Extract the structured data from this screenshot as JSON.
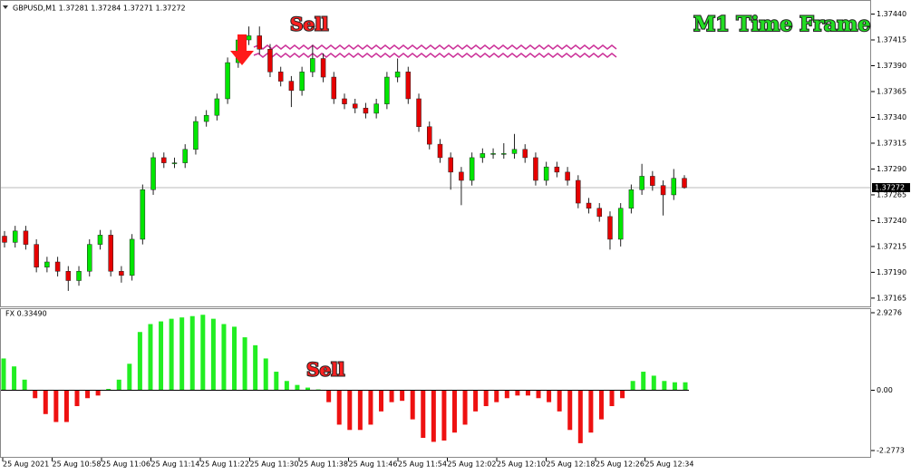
{
  "header": "GBPUSD,M1  1.37281 1.37284 1.37271 1.37272",
  "chart_data": [
    {
      "type": "candlestick",
      "annotations": [
        "Sell",
        "M1 Time Frame"
      ],
      "current_price": 1.37272,
      "up_color": "#00e600",
      "down_color": "#e60000",
      "ylim": [
        1.37157,
        1.37451
      ],
      "yticks": [
        {
          "value": 1.3744,
          "label": "1.37440"
        },
        {
          "value": 1.37415,
          "label": "1.37415"
        },
        {
          "value": 1.3739,
          "label": "1.37390"
        },
        {
          "value": 1.37365,
          "label": "1.37365"
        },
        {
          "value": 1.3734,
          "label": "1.37340"
        },
        {
          "value": 1.37315,
          "label": "1.37315"
        },
        {
          "value": 1.3729,
          "label": "1.37290"
        },
        {
          "value": 1.37265,
          "label": "1.37265"
        },
        {
          "value": 1.3724,
          "label": "1.37240"
        },
        {
          "value": 1.37215,
          "label": "1.37215"
        },
        {
          "value": 1.3719,
          "label": "1.37190"
        },
        {
          "value": 1.37165,
          "label": "1.37165"
        }
      ],
      "open": [
        1.37225,
        1.37219,
        1.3723,
        1.37217,
        1.37195,
        1.372,
        1.37191,
        1.37182,
        1.37191,
        1.37217,
        1.37226,
        1.37191,
        1.37187,
        1.37222,
        1.3727,
        1.37301,
        1.37296,
        1.37296,
        1.37309,
        1.37336,
        1.37342,
        1.37358,
        1.37393,
        1.37415,
        1.37419,
        1.37406,
        1.37384,
        1.37375,
        1.37366,
        1.37384,
        1.37397,
        1.37379,
        1.37358,
        1.37353,
        1.37349,
        1.37344,
        1.37353,
        1.37379,
        1.37384,
        1.37358,
        1.37331,
        1.37314,
        1.37301,
        1.37287,
        1.37279,
        1.37301,
        1.37305,
        1.37305,
        1.37305,
        1.37309,
        1.37301,
        1.37279,
        1.37292,
        1.37287,
        1.37279,
        1.37257,
        1.37252,
        1.37244,
        1.37222,
        1.37252,
        1.3727,
        1.37283,
        1.37274,
        1.37265,
        1.37281
      ],
      "high": [
        1.3723,
        1.37235,
        1.37235,
        1.37222,
        1.37205,
        1.37205,
        1.37196,
        1.37196,
        1.37222,
        1.37231,
        1.37231,
        1.37196,
        1.37227,
        1.37275,
        1.37306,
        1.37306,
        1.37301,
        1.37314,
        1.37341,
        1.37347,
        1.37363,
        1.37398,
        1.3742,
        1.37428,
        1.37428,
        1.37411,
        1.37389,
        1.3738,
        1.37389,
        1.3741,
        1.37402,
        1.37384,
        1.37363,
        1.37358,
        1.37354,
        1.37358,
        1.37384,
        1.37397,
        1.37389,
        1.37363,
        1.37336,
        1.37319,
        1.37306,
        1.37292,
        1.37306,
        1.3731,
        1.3731,
        1.37315,
        1.37324,
        1.37314,
        1.37306,
        1.37297,
        1.37297,
        1.37292,
        1.37284,
        1.37262,
        1.37257,
        1.37249,
        1.37257,
        1.37275,
        1.37295,
        1.37288,
        1.37279,
        1.3729,
        1.37284
      ],
      "low": [
        1.37214,
        1.37214,
        1.37212,
        1.3719,
        1.3719,
        1.37186,
        1.37172,
        1.37177,
        1.37186,
        1.37212,
        1.37186,
        1.3718,
        1.37182,
        1.37217,
        1.37265,
        1.37291,
        1.37291,
        1.37291,
        1.37304,
        1.37331,
        1.37337,
        1.37353,
        1.37388,
        1.3741,
        1.37401,
        1.37379,
        1.3737,
        1.3735,
        1.37361,
        1.37379,
        1.37374,
        1.37353,
        1.37348,
        1.37344,
        1.37339,
        1.37339,
        1.37348,
        1.37374,
        1.37353,
        1.37326,
        1.37309,
        1.37296,
        1.3727,
        1.37255,
        1.37274,
        1.37296,
        1.373,
        1.373,
        1.373,
        1.37296,
        1.37274,
        1.37274,
        1.37282,
        1.37274,
        1.37252,
        1.37247,
        1.37239,
        1.37212,
        1.37215,
        1.37247,
        1.37265,
        1.37269,
        1.37245,
        1.3726,
        1.37271
      ],
      "close": [
        1.37219,
        1.3723,
        1.37217,
        1.37195,
        1.372,
        1.37191,
        1.37182,
        1.37191,
        1.37217,
        1.37226,
        1.37191,
        1.37187,
        1.37222,
        1.3727,
        1.37301,
        1.37296,
        1.37296,
        1.37309,
        1.37336,
        1.37342,
        1.37358,
        1.37393,
        1.37415,
        1.37419,
        1.37406,
        1.37384,
        1.37375,
        1.37366,
        1.37384,
        1.37397,
        1.37379,
        1.37358,
        1.37353,
        1.37349,
        1.37344,
        1.37353,
        1.37379,
        1.37384,
        1.37358,
        1.37331,
        1.37314,
        1.37301,
        1.37287,
        1.37279,
        1.37301,
        1.37305,
        1.37305,
        1.37305,
        1.37309,
        1.37301,
        1.37279,
        1.37292,
        1.37287,
        1.37279,
        1.37257,
        1.37252,
        1.37244,
        1.37222,
        1.37252,
        1.3727,
        1.37283,
        1.37274,
        1.37265,
        1.37281,
        1.37272
      ]
    },
    {
      "type": "histogram_oscillator",
      "title": "FX 0.33490",
      "annotations": [
        "Sell"
      ],
      "positive_color": "#22ee22",
      "negative_color": "#ee1111",
      "ylim": [
        -2.2773,
        2.9276
      ],
      "yticks": [
        2.9276,
        {
          "value": 0,
          "label": "0.00"
        },
        -2.2773
      ],
      "values": [
        1.2,
        0.9,
        0.4,
        -0.3,
        -0.9,
        -1.2,
        -1.2,
        -0.6,
        -0.3,
        -0.2,
        0.05,
        0.4,
        1.0,
        2.2,
        2.5,
        2.6,
        2.7,
        2.75,
        2.8,
        2.85,
        2.7,
        2.5,
        2.4,
        2.0,
        1.7,
        1.2,
        0.7,
        0.35,
        0.2,
        0.1,
        0.03,
        -0.45,
        -1.3,
        -1.5,
        -1.5,
        -1.3,
        -0.8,
        -0.45,
        -0.4,
        -1.1,
        -1.8,
        -1.95,
        -1.9,
        -1.6,
        -1.3,
        -0.8,
        -0.6,
        -0.45,
        -0.3,
        -0.2,
        -0.2,
        -0.3,
        -0.45,
        -0.8,
        -1.5,
        -2.0,
        -1.6,
        -1.1,
        -0.6,
        -0.3,
        0.35,
        0.7,
        0.55,
        0.35,
        0.3,
        0.3
      ],
      "x_labels": [
        "25 Aug 2021",
        "25 Aug 10:58",
        "25 Aug 11:06",
        "25 Aug 11:14",
        "25 Aug 11:22",
        "25 Aug 11:30",
        "25 Aug 11:38",
        "25 Aug 11:46",
        "25 Aug 11:54",
        "25 Aug 12:02",
        "25 Aug 12:10",
        "25 Aug 12:18",
        "25 Aug 12:26",
        "25 Aug 12:34"
      ]
    }
  ]
}
